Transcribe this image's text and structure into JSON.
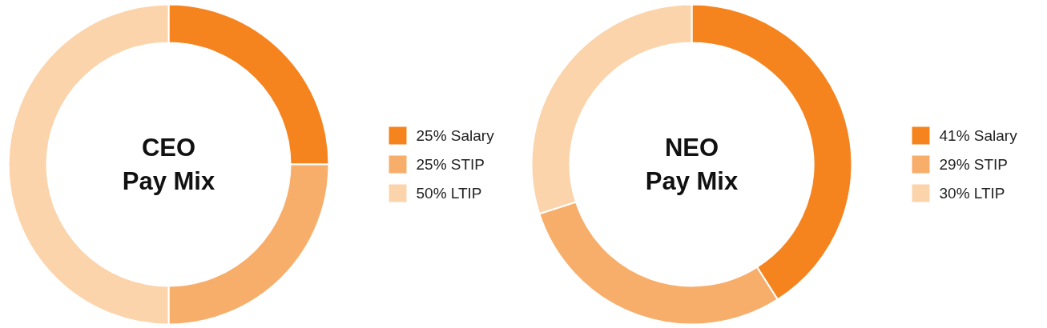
{
  "chart_data": [
    {
      "type": "donut",
      "title": "CEO\nPay Mix",
      "categories": [
        "25% Salary",
        "25% STIP",
        "50% LTIP"
      ],
      "values": [
        25,
        25,
        50
      ],
      "colors": [
        "#f5841f",
        "#f8ae6b",
        "#fbd4ab"
      ],
      "legend": "right"
    },
    {
      "type": "donut",
      "title": "NEO\nPay Mix",
      "categories": [
        "41% Salary",
        "29% STIP",
        "30% LTIP"
      ],
      "values": [
        41,
        29,
        30
      ],
      "colors": [
        "#f5841f",
        "#f8ae6b",
        "#fbd4ab"
      ],
      "legend": "right"
    }
  ]
}
